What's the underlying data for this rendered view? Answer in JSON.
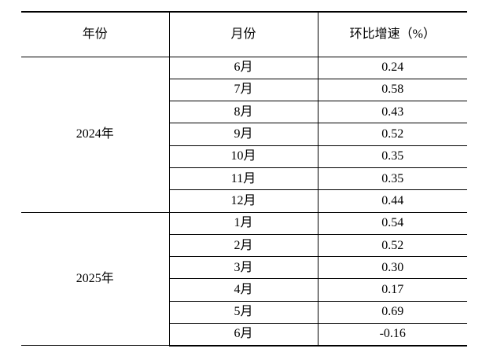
{
  "table": {
    "headers": {
      "year": "年份",
      "month": "月份",
      "rate": "环比增速（%）"
    },
    "groups": [
      {
        "year": "2024年",
        "rows": [
          {
            "month": "6月",
            "rate": "0.24"
          },
          {
            "month": "7月",
            "rate": "0.58"
          },
          {
            "month": "8月",
            "rate": "0.43"
          },
          {
            "month": "9月",
            "rate": "0.52"
          },
          {
            "month": "10月",
            "rate": "0.35"
          },
          {
            "month": "11月",
            "rate": "0.35"
          },
          {
            "month": "12月",
            "rate": "0.44"
          }
        ]
      },
      {
        "year": "2025年",
        "rows": [
          {
            "month": "1月",
            "rate": "0.54"
          },
          {
            "month": "2月",
            "rate": "0.52"
          },
          {
            "month": "3月",
            "rate": "0.30"
          },
          {
            "month": "4月",
            "rate": "0.17"
          },
          {
            "month": "5月",
            "rate": "0.69"
          },
          {
            "month": "6月",
            "rate": "-0.16"
          }
        ]
      }
    ]
  }
}
